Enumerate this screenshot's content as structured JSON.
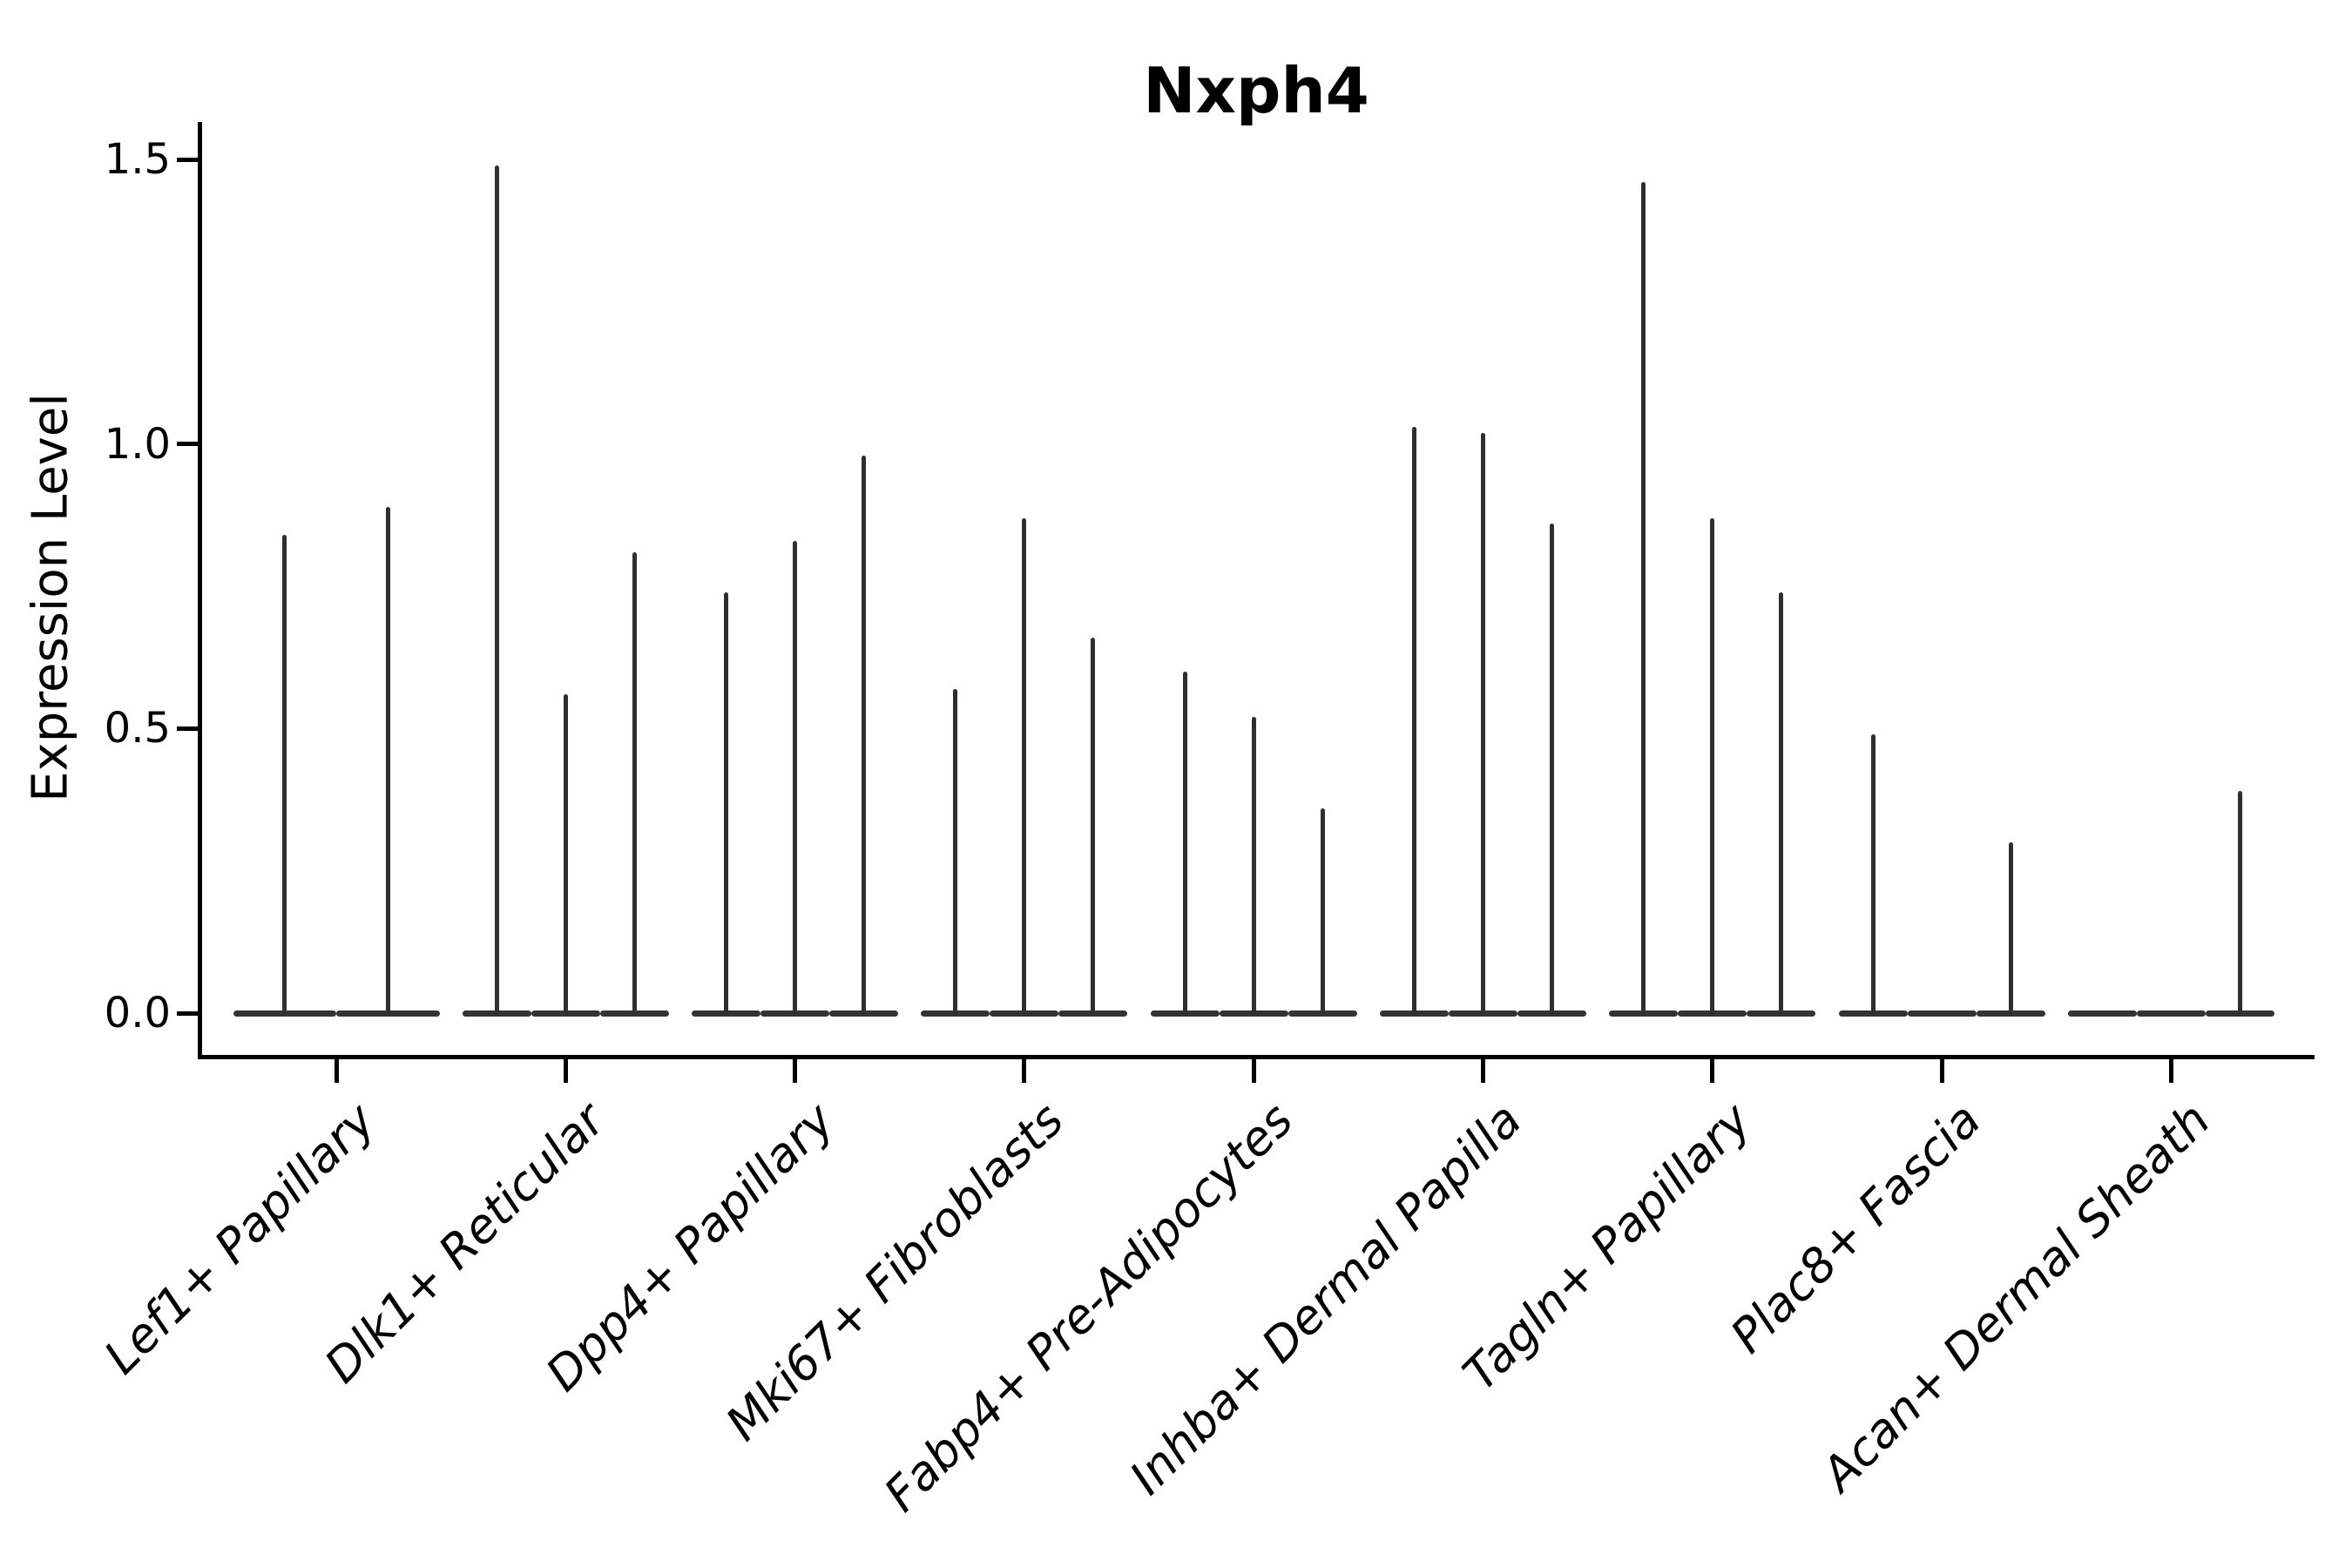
{
  "title": "Nxph4",
  "colors": {
    "background": "#ffffff",
    "axis": "#000000",
    "text": "#000000",
    "violin": "#333333"
  },
  "chart_data": {
    "type": "violin",
    "title": "Nxph4",
    "xlabel": "",
    "ylabel": "Expression Level",
    "ylim": [
      0,
      1.55
    ],
    "yticks": [
      0.0,
      0.5,
      1.0,
      1.5
    ],
    "ytick_labels": [
      "0.0",
      "0.5",
      "1.0",
      "1.5"
    ],
    "grid": false,
    "legend": "none",
    "style": "flat-base-violins-with-max-spike",
    "categories": [
      "Lef1+ Papillary",
      "Dlk1+ Reticular",
      "Dpp4+ Papillary",
      "Mki67+ Fibroblasts",
      "Fabp4+ Pre-Adipocytes",
      "Inhba+ Dermal Papilla",
      "Tagln+ Papillary",
      "Plac8+ Fascia",
      "Acan+ Dermal Sheath"
    ],
    "groups": [
      {
        "category": "Lef1+ Papillary",
        "violin_max_expression": [
          0.84,
          0.89
        ]
      },
      {
        "category": "Dlk1+ Reticular",
        "violin_max_expression": [
          1.49,
          0.56,
          0.81
        ]
      },
      {
        "category": "Dpp4+ Papillary",
        "violin_max_expression": [
          0.74,
          0.83,
          0.98
        ]
      },
      {
        "category": "Mki67+ Fibroblasts",
        "violin_max_expression": [
          0.57,
          0.87,
          0.66
        ]
      },
      {
        "category": "Fabp4+ Pre-Adipocytes",
        "violin_max_expression": [
          0.6,
          0.52,
          0.36
        ]
      },
      {
        "category": "Inhba+ Dermal Papilla",
        "violin_max_expression": [
          1.03,
          1.02,
          0.86
        ]
      },
      {
        "category": "Tagln+ Papillary",
        "violin_max_expression": [
          1.46,
          0.87,
          0.74
        ]
      },
      {
        "category": "Plac8+ Fascia",
        "violin_max_expression": [
          0.49,
          0.0,
          0.3
        ]
      },
      {
        "category": "Acan+ Dermal Sheath",
        "violin_max_expression": [
          0.0,
          0.0,
          0.39
        ]
      }
    ]
  }
}
